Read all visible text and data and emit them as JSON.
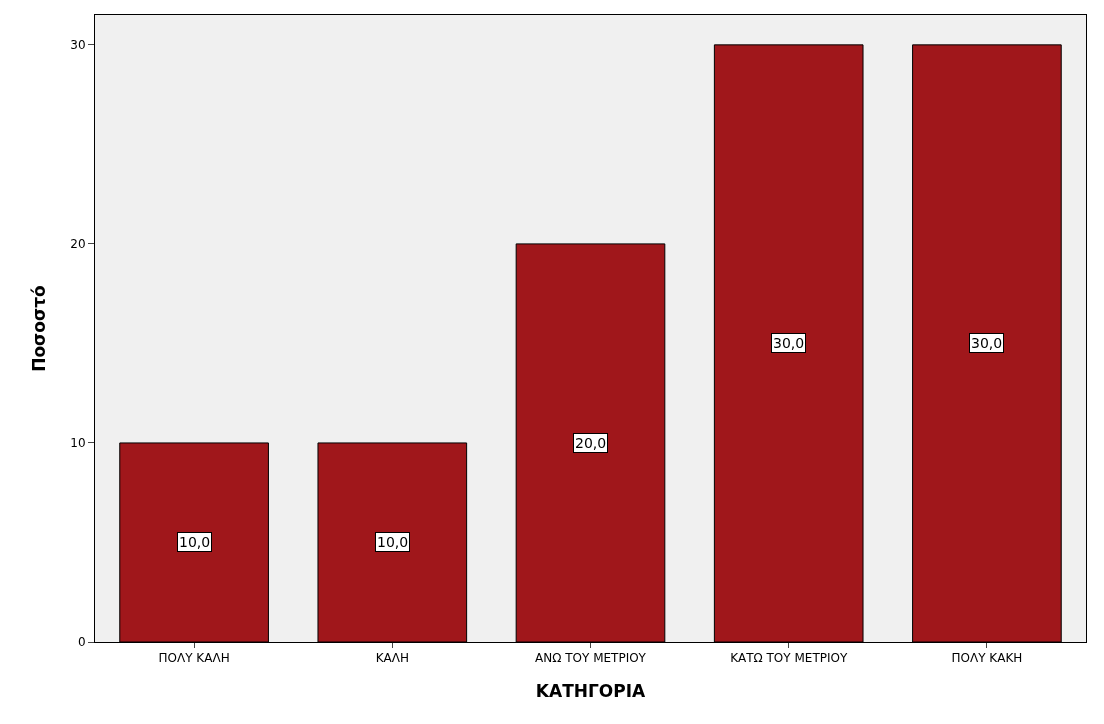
{
  "chart_data": {
    "type": "bar",
    "xlabel": "ΚΑΤΗΓΟΡΙΑ",
    "ylabel": "Ποσοστό",
    "categories": [
      "ΠΟΛΥ ΚΑΛΗ",
      "ΚΑΛΗ",
      "ΑΝΩ ΤΟΥ ΜΕΤΡΙΟΥ",
      "ΚΑΤΩ ΤΟΥ ΜΕΤΡΙΟΥ",
      "ΠΟΛΥ ΚΑΚΗ"
    ],
    "values": [
      10,
      10,
      20,
      30,
      30
    ],
    "value_labels": [
      "10,0",
      "10,0",
      "20,0",
      "30,0",
      "30,0"
    ],
    "color": "#a0171b",
    "ylim": [
      0,
      31.5
    ],
    "yticks": [
      0,
      10,
      20,
      30
    ],
    "grid": false,
    "legend": false
  }
}
